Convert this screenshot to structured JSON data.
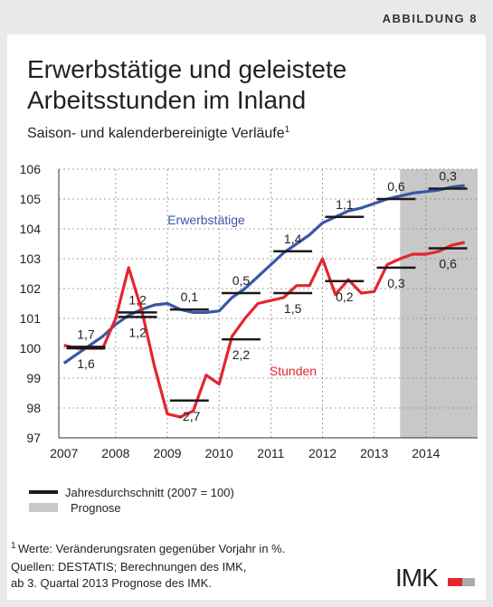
{
  "header": "ABBILDUNG 8",
  "chart_data": {
    "type": "line",
    "title": [
      "Erwerbstätige und geleistete",
      "Arbeitsstunden im Inland"
    ],
    "subtitle": "Saison- und kalenderbereinigte Verläufe",
    "subtitle_note": "1",
    "x": [
      2007,
      2007.25,
      2007.5,
      2007.75,
      2008,
      2008.25,
      2008.5,
      2008.75,
      2009,
      2009.25,
      2009.5,
      2009.75,
      2010,
      2010.25,
      2010.5,
      2010.75,
      2011,
      2011.25,
      2011.5,
      2011.75,
      2012,
      2012.25,
      2012.5,
      2012.75,
      2013,
      2013.25,
      2013.5,
      2013.75,
      2014,
      2014.25,
      2014.5,
      2014.75
    ],
    "xlim": [
      2006.9,
      2015.0
    ],
    "xticks": [
      2007,
      2008,
      2009,
      2010,
      2011,
      2012,
      2013,
      2014
    ],
    "ylim": [
      97,
      106
    ],
    "yticks": [
      97,
      98,
      99,
      100,
      101,
      102,
      103,
      104,
      105,
      106
    ],
    "grid": true,
    "years": [
      2007,
      2008,
      2009,
      2010,
      2011,
      2012,
      2013,
      2014
    ],
    "series": [
      {
        "name": "Erwerbstätige",
        "color": "#3a57a6",
        "values": [
          99.5,
          99.8,
          100.1,
          100.4,
          100.8,
          101.1,
          101.3,
          101.45,
          101.5,
          101.3,
          101.2,
          101.2,
          101.25,
          101.7,
          102.0,
          102.4,
          102.8,
          103.2,
          103.5,
          103.8,
          104.2,
          104.4,
          104.6,
          104.7,
          104.85,
          105.0,
          105.1,
          105.2,
          105.25,
          105.3,
          105.4,
          105.45
        ],
        "annual": [
          100.05,
          101.2,
          101.3,
          101.85,
          103.25,
          104.4,
          105.0,
          105.35
        ],
        "rate_labels": [
          "1,7",
          "1,2",
          "0,1",
          "0,5",
          "1,4",
          "1,1",
          "0,6",
          "0,3"
        ]
      },
      {
        "name": "Stunden",
        "color": "#e3262d",
        "values": [
          100.1,
          100.0,
          100.0,
          100.0,
          101.0,
          102.7,
          101.3,
          99.4,
          97.8,
          97.7,
          97.9,
          99.1,
          98.8,
          100.4,
          101.0,
          101.5,
          101.6,
          101.7,
          102.1,
          102.1,
          103.0,
          101.8,
          102.3,
          101.85,
          101.9,
          102.8,
          103.0,
          103.15,
          103.15,
          103.25,
          103.45,
          103.55
        ],
        "annual": [
          100.0,
          101.05,
          98.25,
          100.3,
          101.85,
          102.25,
          102.7,
          103.35
        ],
        "rate_labels": [
          "1,6",
          "1,2",
          "-2,7",
          "2,2",
          "1,5",
          "0,2",
          "0,3",
          "0,6"
        ]
      }
    ],
    "annual_legend": "Jahresdurchschnitt (2007 = 100)",
    "annual_color": "#1a1a1a",
    "forecast": {
      "label": "Prognose",
      "from": 2013.5,
      "color": "#c8c8c8"
    }
  },
  "footnote": {
    "mark": "1",
    "text": "Werte: Veränderungsraten gegenüber Vorjahr in %."
  },
  "sources": [
    "Quellen: DESTATIS; Berechnungen des IMK,",
    "ab 3. Quartal 2013 Prognose des IMK."
  ],
  "logo": "IMK"
}
